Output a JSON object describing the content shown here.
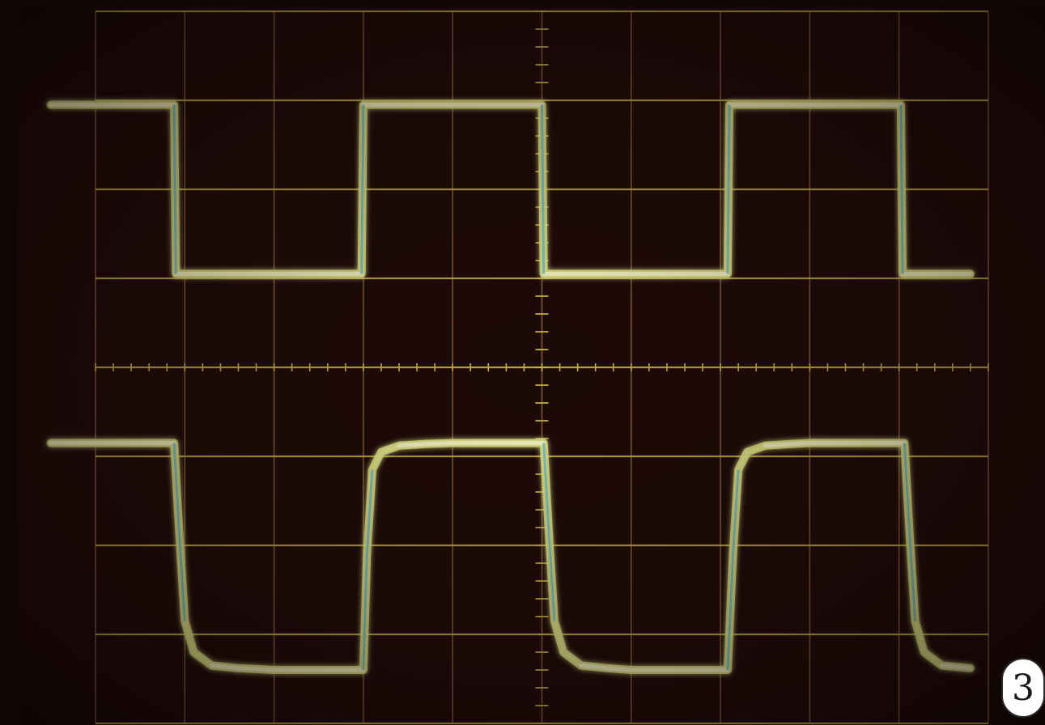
{
  "figure": {
    "label": "3"
  },
  "colors": {
    "screen": "#1c0a08",
    "bezel": "#120604",
    "graticule": "#c9b54a",
    "graticule_minor": "#8f6a3e",
    "trace": "#e6ec8c",
    "trace_glow": "#f6f8c4",
    "trace_edge": "#7fc7bf"
  },
  "chart_data": {
    "type": "line",
    "grid": true,
    "axes": {
      "x_divisions": 10,
      "y_divisions": 8,
      "ylim": [
        -4,
        4
      ],
      "xlim": [
        0,
        10
      ],
      "minor_ticks_per_division": 5
    },
    "series": [
      {
        "x": [
          -0.5,
          0.88,
          0.9,
          2.98,
          3.0,
          5.0,
          5.02,
          7.08,
          7.1,
          9.02,
          9.04,
          9.8
        ],
        "y": [
          2.95,
          2.95,
          1.05,
          1.05,
          2.95,
          2.95,
          1.05,
          1.05,
          2.95,
          2.95,
          1.05,
          1.05
        ]
      },
      {
        "x": [
          -0.5,
          0.88,
          0.94,
          1.0,
          1.1,
          1.3,
          1.6,
          2.0,
          3.0,
          3.04,
          3.1,
          3.2,
          3.4,
          3.7,
          4.0,
          5.02,
          5.08,
          5.14,
          5.24,
          5.44,
          5.74,
          6.0,
          7.08,
          7.14,
          7.2,
          7.3,
          7.5,
          7.8,
          8.0,
          9.06,
          9.12,
          9.18,
          9.28,
          9.48,
          9.8
        ],
        "y": [
          -0.85,
          -0.85,
          -1.9,
          -2.85,
          -3.2,
          -3.35,
          -3.38,
          -3.4,
          -3.4,
          -2.1,
          -1.15,
          -0.95,
          -0.88,
          -0.86,
          -0.85,
          -0.85,
          -1.9,
          -2.85,
          -3.2,
          -3.35,
          -3.38,
          -3.4,
          -3.4,
          -2.1,
          -1.15,
          -0.95,
          -0.88,
          -0.86,
          -0.85,
          -0.85,
          -1.9,
          -2.85,
          -3.2,
          -3.35,
          -3.38
        ]
      }
    ]
  }
}
